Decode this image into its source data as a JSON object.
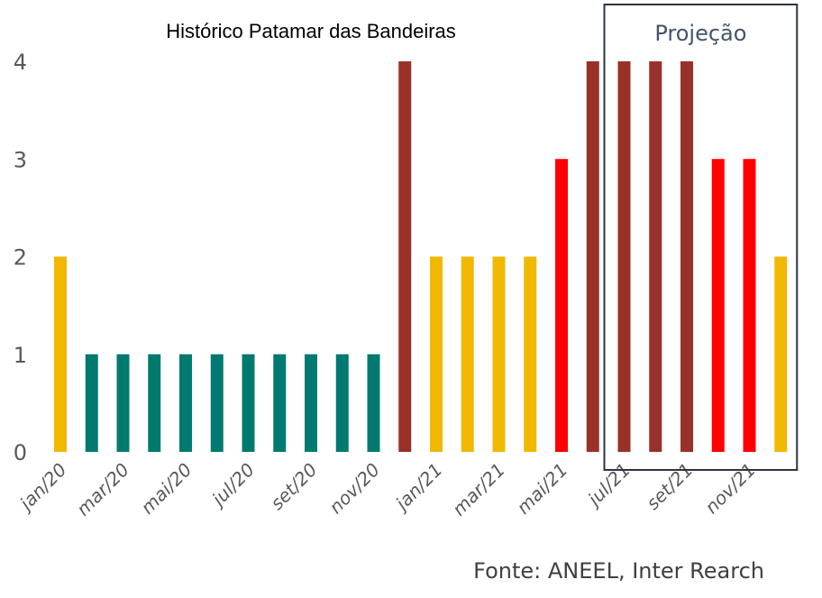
{
  "chart_data": {
    "type": "bar",
    "title": "Histórico Patamar das Bandeiras",
    "categories": [
      "jan/20",
      "fev/20",
      "mar/20",
      "abr/20",
      "mai/20",
      "jun/20",
      "jul/20",
      "ago/20",
      "set/20",
      "out/20",
      "nov/20",
      "dez/20",
      "jan/21",
      "fev/21",
      "mar/21",
      "abr/21",
      "mai/21",
      "jun/21",
      "jul/21",
      "ago/21",
      "set/21",
      "out/21",
      "nov/21",
      "dez/21"
    ],
    "tick_labels": [
      "jan/20",
      "mar/20",
      "mai/20",
      "jul/20",
      "set/20",
      "nov/20",
      "jan/21",
      "mar/21",
      "mai/21",
      "jul/21",
      "set/21",
      "nov/21"
    ],
    "values": [
      2,
      1,
      1,
      1,
      1,
      1,
      1,
      1,
      1,
      1,
      1,
      4,
      2,
      2,
      2,
      2,
      3,
      4,
      4,
      4,
      4,
      3,
      3,
      2
    ],
    "bar_colors": [
      "#f0b800",
      "#007a70",
      "#007a70",
      "#007a70",
      "#007a70",
      "#007a70",
      "#007a70",
      "#007a70",
      "#007a70",
      "#007a70",
      "#007a70",
      "#993128",
      "#f0b800",
      "#f0b800",
      "#f0b800",
      "#f0b800",
      "#ff0000",
      "#993128",
      "#993128",
      "#993128",
      "#993128",
      "#ff0000",
      "#ff0000",
      "#f0b800"
    ],
    "ylim": [
      0,
      4
    ],
    "yticks": [
      0,
      1,
      2,
      3,
      4
    ],
    "grid": false,
    "projection": {
      "label": "Projeção",
      "from_category": "jul/21",
      "to_category": "dez/21"
    },
    "source": "Fonte: ANEEL, Inter Rearch"
  }
}
